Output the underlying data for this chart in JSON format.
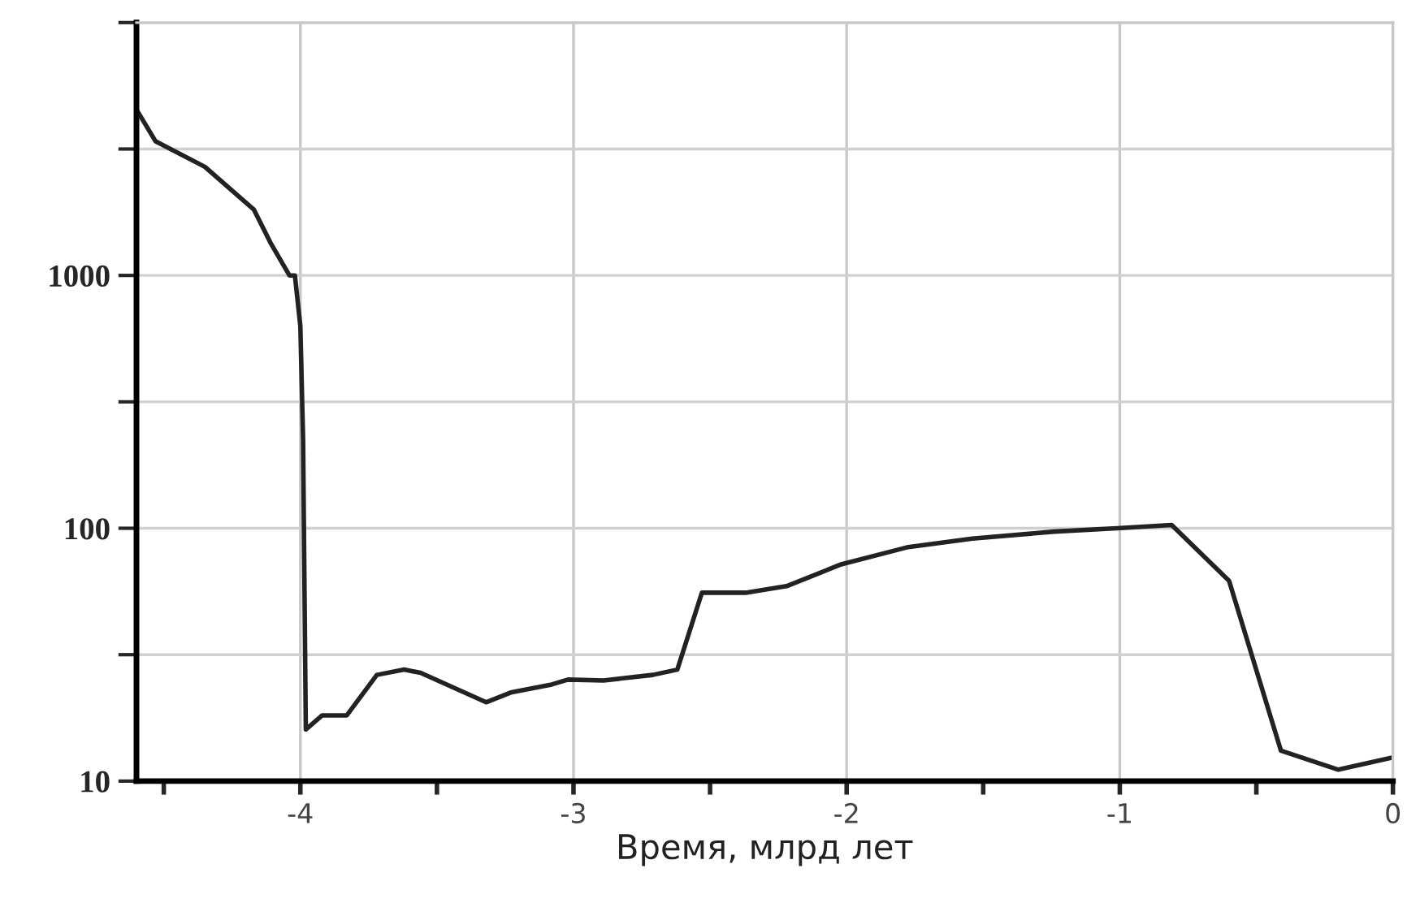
{
  "chart_data": {
    "type": "line",
    "xlabel": "Время, млрд лет",
    "log": "y",
    "grid": true,
    "marker": "none",
    "line_style": "solid",
    "x": [
      -4.6,
      -4.53,
      -4.35,
      -4.17,
      -4.11,
      -4.04,
      -4.02,
      -4.0,
      -3.99,
      -3.98,
      -3.92,
      -3.83,
      -3.72,
      -3.62,
      -3.56,
      -3.32,
      -3.23,
      -3.08,
      -3.02,
      -2.89,
      -2.71,
      -2.62,
      -2.53,
      -2.37,
      -2.22,
      -2.02,
      -1.78,
      -1.54,
      -1.24,
      -1.01,
      -0.81,
      -0.6,
      -0.41,
      -0.2,
      0
    ],
    "series": [
      {
        "color": "#222222",
        "values": [
          4530,
          3390,
          2690,
          1820,
          1350,
          1000,
          1000,
          630,
          224,
          16,
          18.2,
          18.2,
          26.3,
          27.6,
          26.8,
          20.5,
          22.4,
          24.1,
          25.2,
          25,
          26.3,
          27.6,
          55.6,
          55.6,
          59,
          72,
          84,
          91,
          97,
          100,
          103,
          62,
          13.2,
          11.1,
          12.4
        ]
      }
    ],
    "xlim": [
      -4.6,
      0
    ],
    "ylim": [
      10,
      10000
    ],
    "xticks": [
      {
        "value": -4.5,
        "label": null
      },
      -4,
      {
        "value": -3.5,
        "label": null
      },
      -3,
      {
        "value": -2.5,
        "label": null
      },
      -2,
      {
        "value": -1.5,
        "label": null
      },
      -1,
      {
        "value": -0.5,
        "label": null
      },
      0
    ],
    "yticks": [
      10,
      {
        "value": 31.62,
        "label": null
      },
      100,
      {
        "value": 316.2,
        "label": null
      },
      1000,
      {
        "value": 3162,
        "label": null
      },
      {
        "value": 10000,
        "label": null
      }
    ]
  }
}
